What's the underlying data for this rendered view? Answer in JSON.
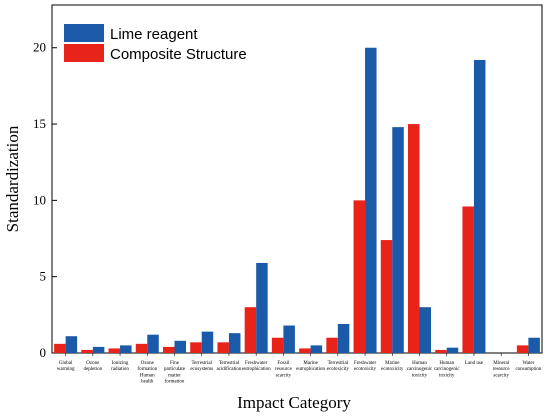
{
  "chart_data": {
    "type": "bar",
    "xlabel": "Impact Category",
    "ylabel": "Standardization",
    "ylim": [
      0,
      22.8
    ],
    "yticks": [
      0,
      5,
      10,
      15,
      20
    ],
    "legend_position": "top-left",
    "categories": [
      [
        "Global",
        "warming"
      ],
      [
        "Ozone",
        "depletion"
      ],
      [
        "Ionizing",
        "radiation"
      ],
      [
        "Ozone",
        "formation",
        "Human",
        "health"
      ],
      [
        "Fine",
        "particulate",
        "matter",
        "formation"
      ],
      [
        "Terrestrial",
        "ecosystems"
      ],
      [
        "Terrestrial",
        "acidification"
      ],
      [
        "Freshwater",
        "eutrophication"
      ],
      [
        "Fossil",
        "resource",
        "scarcity"
      ],
      [
        "Marine",
        "eutrophication"
      ],
      [
        "Terrestrial",
        "ecotoxicity"
      ],
      [
        "Freshwater",
        "ecotoxicity"
      ],
      [
        "Marine",
        "ecotoxicity"
      ],
      [
        "Human",
        "carcinogenic",
        "toxicity"
      ],
      [
        "Human",
        "carcinogenic",
        "toxicity"
      ],
      [
        "Land use"
      ],
      [
        "Mineral",
        "resource",
        "scarcity"
      ],
      [
        "Water",
        "consumption"
      ]
    ],
    "series": [
      {
        "name": "Composite Structure",
        "color": "#e8241a",
        "values": [
          0.6,
          0.2,
          0.3,
          0.6,
          0.4,
          0.7,
          0.7,
          3.0,
          1.0,
          0.3,
          1.0,
          10.0,
          7.4,
          15.0,
          0.2,
          9.6,
          0.0,
          0.5
        ]
      },
      {
        "name": "Lime reagent",
        "color": "#1a5aa8",
        "values": [
          1.1,
          0.4,
          0.5,
          1.2,
          0.8,
          1.4,
          1.3,
          5.9,
          1.8,
          0.5,
          1.9,
          20.0,
          14.8,
          3.0,
          0.35,
          19.2,
          0.0,
          1.0
        ]
      }
    ]
  }
}
